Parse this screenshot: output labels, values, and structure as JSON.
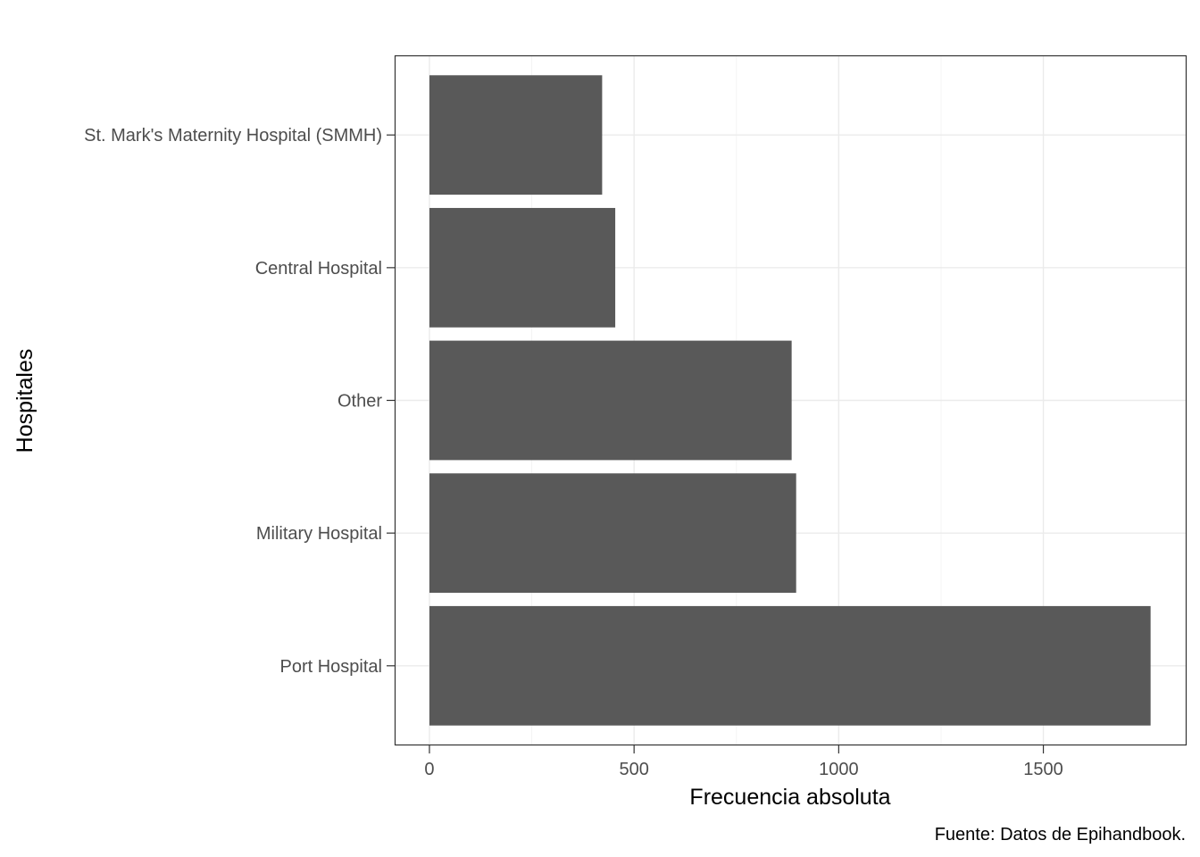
{
  "chart_data": {
    "type": "bar",
    "orientation": "horizontal",
    "categories": [
      "St. Mark's Maternity Hospital (SMMH)",
      "Central Hospital",
      "Other",
      "Military Hospital",
      "Port Hospital"
    ],
    "values": [
      422,
      454,
      885,
      896,
      1762
    ],
    "xlabel": "Frecuencia absoluta",
    "ylabel": "Hospitales",
    "caption": "Fuente: Datos de Epihandbook.",
    "xlim": [
      -85,
      1850
    ],
    "xticks": [
      0,
      500,
      1000,
      1500
    ],
    "xtick_labels": [
      "0",
      "500",
      "1000",
      "1500"
    ],
    "grid": true,
    "theme": "bw",
    "colors": {
      "bar": "#595959",
      "grid_major": "#ebebeb",
      "grid_minor": "#f4f4f4",
      "panel_border": "#333333",
      "tick_text": "#4d4d4d"
    }
  }
}
